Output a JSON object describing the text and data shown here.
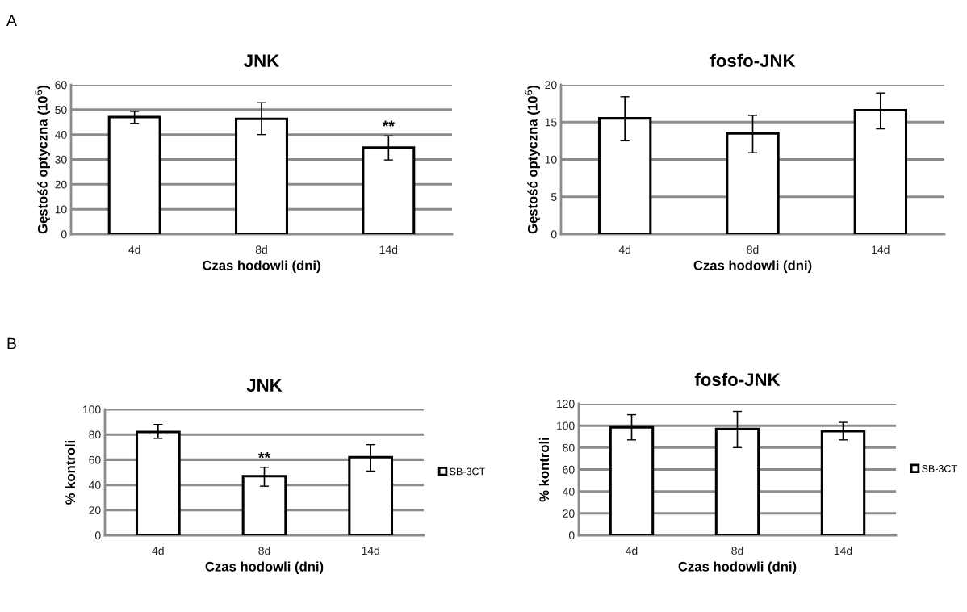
{
  "chart_data": [
    {
      "type": "bar",
      "title": "JNK",
      "xlabel": "Czas hodowli (dni)",
      "ylabel": "Gęstość optyczna (10$^{6}$)",
      "categories": [
        "4d",
        "8d",
        "14d"
      ],
      "series": [
        {
          "color": "#ffffff",
          "values": [
            47,
            46.3,
            34.8
          ],
          "errors": [
            [
              44.5,
              49.3
            ],
            [
              40,
              52.8
            ],
            [
              29.8,
              39.5
            ]
          ]
        }
      ],
      "ylim": [
        0,
        60
      ],
      "yticks": [
        0,
        10,
        20,
        30,
        40,
        50,
        60
      ],
      "grid": "y",
      "annotations": [
        "A",
        {
          "text": "**",
          "x": "14d",
          "y": 39.5
        }
      ]
    },
    {
      "type": "bar",
      "title": "fosfo-JNK",
      "xlabel": "Czas hodowli (dni)",
      "ylabel": "Gęstość optyczna (10$^{6}$)",
      "categories": [
        "4d",
        "8d",
        "14d"
      ],
      "series": [
        {
          "color": "#ffffff",
          "values": [
            15.5,
            13.5,
            16.6
          ],
          "errors": [
            [
              12.5,
              18.4
            ],
            [
              10.9,
              15.9
            ],
            [
              14.1,
              18.9
            ]
          ]
        }
      ],
      "ylim": [
        0,
        20
      ],
      "yticks": [
        0,
        5,
        10,
        15,
        20
      ],
      "grid": "y"
    },
    {
      "type": "bar",
      "title": "JNK",
      "xlabel": "Czas hodowli (dni)",
      "ylabel": "% kontroli",
      "categories": [
        "4d",
        "8d",
        "14d"
      ],
      "series": [
        {
          "name": "SB-3CT",
          "color": "#ffffff",
          "values": [
            82,
            47,
            62
          ],
          "errors": [
            [
              77,
              88
            ],
            [
              39,
              54
            ],
            [
              51,
              72
            ]
          ]
        }
      ],
      "ylim": [
        0,
        100
      ],
      "yticks": [
        0,
        20,
        40,
        60,
        80,
        100
      ],
      "grid": "y",
      "legend": "right",
      "annotations": [
        "B",
        {
          "text": "**",
          "x": "8d",
          "y": 54
        }
      ]
    },
    {
      "type": "bar",
      "title": "fosfo-JNK",
      "xlabel": "Czas hodowli (dni)",
      "ylabel": "% kontroli",
      "categories": [
        "4d",
        "8d",
        "14d"
      ],
      "series": [
        {
          "name": "SB-3CT",
          "color": "#ffffff",
          "values": [
            98.5,
            97,
            95
          ],
          "errors": [
            [
              87,
              110
            ],
            [
              80,
              113
            ],
            [
              87,
              103
            ]
          ]
        }
      ],
      "ylim": [
        0,
        120
      ],
      "yticks": [
        0,
        20,
        40,
        60,
        80,
        100,
        120
      ],
      "grid": "y",
      "legend": "right"
    }
  ]
}
